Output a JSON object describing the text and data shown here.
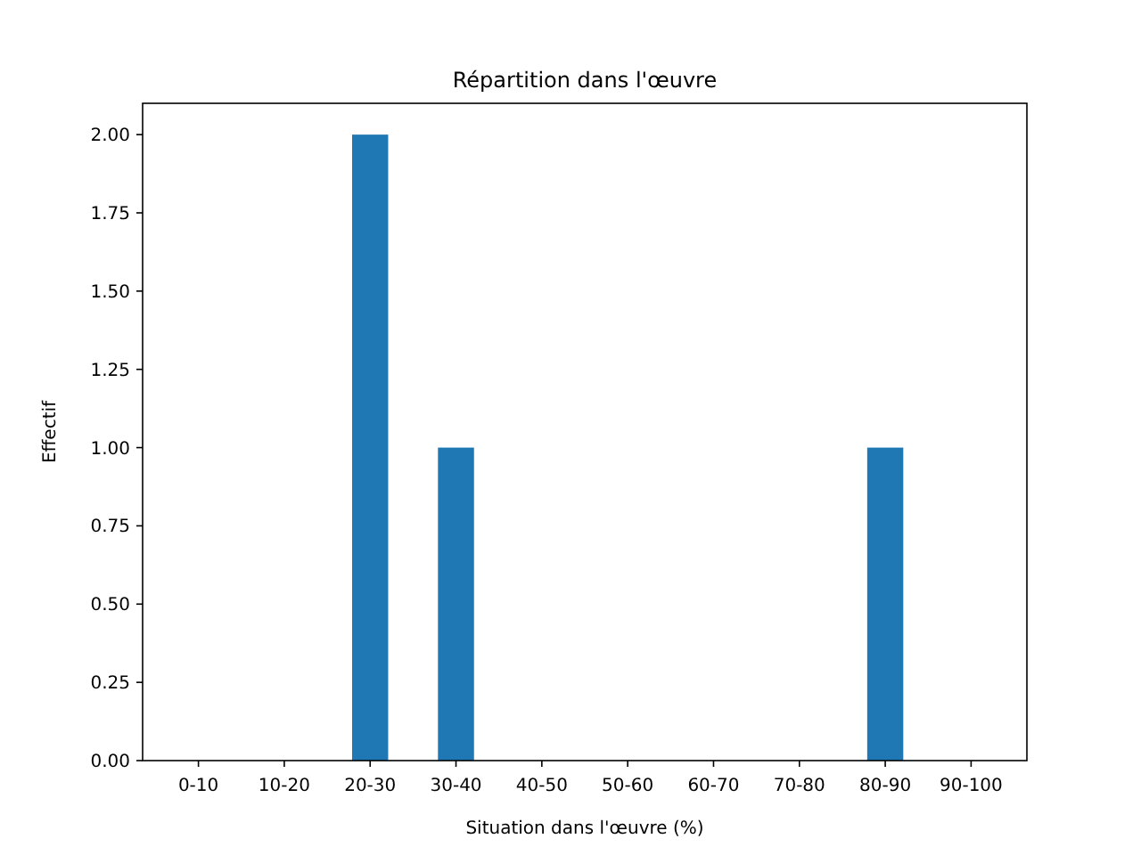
{
  "chart_data": {
    "type": "bar",
    "title": "Répartition dans l'œuvre",
    "xlabel": "Situation dans l'œuvre (%)",
    "ylabel": "Effectif",
    "categories": [
      "0-10",
      "10-20",
      "20-30",
      "30-40",
      "40-50",
      "50-60",
      "60-70",
      "70-80",
      "80-90",
      "90-100"
    ],
    "values": [
      0,
      0,
      2,
      1,
      0,
      0,
      0,
      0,
      1,
      0
    ],
    "color": "#1f77b4",
    "ylim": [
      0,
      2.1
    ],
    "yticks": [
      {
        "value": 0,
        "label": "0.00"
      },
      {
        "value": 0.25,
        "label": "0.25"
      },
      {
        "value": 0.5,
        "label": "0.50"
      },
      {
        "value": 0.75,
        "label": "0.75"
      },
      {
        "value": 1,
        "label": "1.00"
      },
      {
        "value": 1.25,
        "label": "1.25"
      },
      {
        "value": 1.5,
        "label": "1.50"
      },
      {
        "value": 1.75,
        "label": "1.75"
      },
      {
        "value": 2,
        "label": "2.00"
      }
    ]
  }
}
